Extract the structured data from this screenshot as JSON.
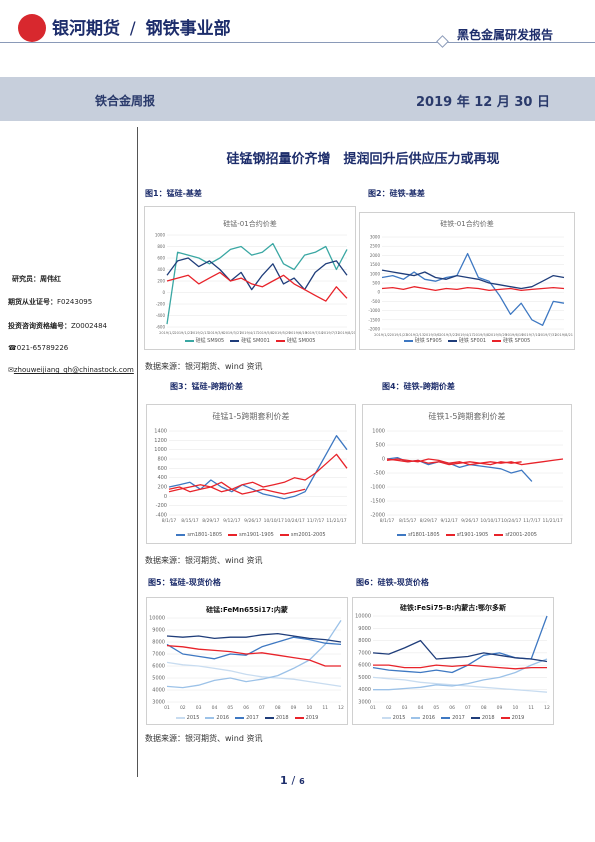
{
  "header": {
    "company": "银河期货",
    "separator": "/",
    "department": "钢铁事业部",
    "report_type": "黑色金属研发报告"
  },
  "band": {
    "title": "铁合金周报",
    "date": "2019 年 12 月 30 日"
  },
  "main_title": "硅锰钢招量价齐增　提润回升后供应压力或再现",
  "sidebar": {
    "researcher_label": "研究员：",
    "researcher": "周伟红",
    "qual_label": "期货从业证号：",
    "qual": "F0243095",
    "advisor_label": "投资咨询资格编号：",
    "advisor": "Z0002484",
    "phone": "021-65789226",
    "email": "zhouweijiang_qh@chinastock.com"
  },
  "figures": {
    "fig1_label": "图1：锰硅-基差",
    "fig2_label": "图2：硅铁-基差",
    "fig3_label": "图3：锰硅-跨期价差",
    "fig4_label": "图4：硅铁-跨期价差",
    "fig5_label": "图5：锰硅-现货价格",
    "fig6_label": "图6：硅铁-现货价格",
    "source1": "数据来源：银河期货、wind 资讯",
    "source2": "数据来源：银河期货、wind 资讯",
    "source3": "数据来源：银河期货、wind 资讯"
  },
  "page": {
    "current": "1",
    "sep": "/",
    "total": "6"
  },
  "colors": {
    "blue_dark": "#1f3d7a",
    "blue_light": "#3e78c2",
    "pale_blue": "#9cc2e8",
    "red": "#e8232a",
    "teal": "#3aa7a3"
  },
  "chart_data": [
    {
      "id": "c1",
      "type": "line",
      "title": "硅锰-01合约价差",
      "y_ticks": [
        "1000",
        "800",
        "600",
        "400",
        "200",
        "0",
        "-200",
        "-400",
        "-600"
      ],
      "ylim": [
        -600,
        1000
      ],
      "x_ticks": [
        "2019/1/2",
        "2019/1/23",
        "2019/2/13",
        "2019/3/6",
        "2019/3/27",
        "2019/4/17",
        "2019/5/8",
        "2019/5/29",
        "2019/6/19",
        "2019/7/10",
        "2019/7/31",
        "2019/8/21"
      ],
      "series": [
        {
          "name": "硅锰 SM905",
          "color": "#3aa7a3",
          "values": [
            -550,
            700,
            650,
            600,
            500,
            600,
            750,
            800,
            650,
            700,
            850,
            500,
            400,
            650,
            700,
            800,
            400,
            750
          ]
        },
        {
          "name": "硅锰 SM001",
          "color": "#1f3d7a",
          "values": [
            300,
            550,
            600,
            450,
            550,
            400,
            200,
            350,
            50,
            300,
            500,
            150,
            250,
            50,
            350,
            500,
            550,
            300
          ]
        },
        {
          "name": "硅锰 SM005",
          "color": "#e8232a",
          "values": [
            200,
            250,
            300,
            150,
            250,
            350,
            200,
            250,
            150,
            100,
            200,
            300,
            150,
            50,
            -50,
            -150,
            100,
            -100
          ]
        }
      ]
    },
    {
      "id": "c2",
      "type": "line",
      "title": "硅铁-01合约价差",
      "y_ticks": [
        "3000",
        "2500",
        "2000",
        "1500",
        "1000",
        "500",
        "0",
        "-500",
        "-1000",
        "-1500",
        "-2000"
      ],
      "ylim": [
        -2000,
        3000
      ],
      "x_ticks": [
        "2019/1/2",
        "2019/1/23",
        "2019/2/13",
        "2019/3/6",
        "2019/3/27",
        "2019/4/17",
        "2019/5/8",
        "2019/5/29",
        "2019/6/19",
        "2019/7/10",
        "2019/7/31",
        "2019/8/21"
      ],
      "series": [
        {
          "name": "硅铁 SF905",
          "color": "#3e78c2",
          "values": [
            800,
            900,
            700,
            1100,
            700,
            600,
            800,
            900,
            2100,
            800,
            600,
            -200,
            -1200,
            -600,
            -1500,
            -1800,
            -500,
            -600
          ]
        },
        {
          "name": "硅铁 SF001",
          "color": "#1f3d7a",
          "values": [
            1200,
            1100,
            1000,
            900,
            1100,
            800,
            700,
            900,
            800,
            700,
            500,
            400,
            300,
            200,
            300,
            600,
            900,
            800
          ]
        },
        {
          "name": "硅铁 SF005",
          "color": "#e8232a",
          "values": [
            200,
            250,
            150,
            300,
            200,
            100,
            200,
            150,
            250,
            200,
            100,
            150,
            200,
            100,
            150,
            200,
            250,
            200
          ]
        }
      ]
    },
    {
      "id": "c3",
      "type": "line",
      "title": "硅锰1-5跨期套利价差",
      "y_ticks": [
        "1400",
        "1200",
        "1000",
        "800",
        "600",
        "400",
        "200",
        "0",
        "-200",
        "-400"
      ],
      "ylim": [
        -400,
        1400
      ],
      "x_ticks": [
        "8/1/17",
        "8/8/17",
        "8/15/17",
        "8/22/17",
        "8/29/17",
        "9/5/17",
        "9/12/17",
        "9/19/17",
        "9/26/17",
        "10/3/17",
        "10/10/17",
        "10/17/17",
        "10/24/17",
        "10/31/17",
        "11/7/17",
        "11/14/17",
        "11/21/17",
        "11/28/17"
      ],
      "series": [
        {
          "name": "sm1801-1805",
          "color": "#3e78c2",
          "values": [
            200,
            250,
            300,
            150,
            350,
            200,
            100,
            250,
            150,
            50,
            0,
            -50,
            0,
            100,
            500,
            900,
            1300,
            1000
          ]
        },
        {
          "name": "sm1901-1905",
          "color": "#e8232a",
          "values": [
            100,
            150,
            200,
            250,
            200,
            300,
            150,
            250,
            300,
            200,
            250,
            300,
            400,
            350,
            500,
            700,
            900,
            600
          ]
        },
        {
          "name": "sm2001-2005",
          "color": "#e8232a",
          "values": [
            150,
            200,
            100,
            150,
            200,
            100,
            150,
            50,
            100,
            150,
            100,
            50,
            100,
            150,
            null,
            null,
            null,
            null
          ]
        }
      ]
    },
    {
      "id": "c4",
      "type": "line",
      "title": "硅铁1-5跨期套利价差",
      "y_ticks": [
        "1000",
        "500",
        "0",
        "-500",
        "-1000",
        "-1500",
        "-2000"
      ],
      "ylim": [
        -2000,
        1000
      ],
      "x_ticks": [
        "8/1/17",
        "8/8/17",
        "8/15/17",
        "8/22/17",
        "8/29/17",
        "9/5/17",
        "9/12/17",
        "9/19/17",
        "9/26/17",
        "10/3/17",
        "10/10/17",
        "10/17/17",
        "10/24/17",
        "10/31/17",
        "11/7/17",
        "11/14/17",
        "11/21/17",
        "11/28/17"
      ],
      "series": [
        {
          "name": "sf1801-1805",
          "color": "#3e78c2",
          "values": [
            0,
            50,
            -100,
            -50,
            -200,
            -100,
            -150,
            -300,
            -200,
            -250,
            -300,
            -350,
            -500,
            -400,
            -800,
            null,
            null,
            null
          ]
        },
        {
          "name": "sf1901-1905",
          "color": "#e8232a",
          "values": [
            -50,
            0,
            -50,
            -100,
            0,
            -50,
            -150,
            -100,
            -200,
            -150,
            -100,
            -150,
            -100,
            -200,
            -150,
            -100,
            -50,
            0
          ]
        },
        {
          "name": "sf2001-2005",
          "color": "#e8232a",
          "values": [
            0,
            -50,
            -100,
            -50,
            -150,
            -100,
            -200,
            -150,
            -100,
            -150,
            -200,
            -100,
            -150,
            -100,
            null,
            null,
            null,
            null
          ]
        }
      ]
    },
    {
      "id": "c5",
      "type": "line",
      "title": "硅锰:FeMn65Si17:内蒙",
      "y_ticks": [
        "10000",
        "9000",
        "8000",
        "7000",
        "6000",
        "5000",
        "4000",
        "3000"
      ],
      "ylim": [
        3000,
        10000
      ],
      "x_ticks": [
        "01",
        "02",
        "03",
        "04",
        "05",
        "06",
        "07",
        "08",
        "09",
        "10",
        "11",
        "12"
      ],
      "series": [
        {
          "name": "2015",
          "color": "#c8dcf0",
          "values": [
            6300,
            6100,
            6000,
            5800,
            5600,
            5300,
            5100,
            5000,
            4900,
            4700,
            4500,
            4300
          ]
        },
        {
          "name": "2016",
          "color": "#9cc2e8",
          "values": [
            4300,
            4200,
            4400,
            4800,
            5000,
            4700,
            4900,
            5200,
            5800,
            6500,
            7800,
            9800
          ]
        },
        {
          "name": "2017",
          "color": "#3e78c2",
          "values": [
            7800,
            7000,
            6800,
            6600,
            7000,
            6900,
            7600,
            8000,
            8400,
            8200,
            7900,
            7800
          ]
        },
        {
          "name": "2018",
          "color": "#1f3d7a",
          "values": [
            8500,
            8400,
            8500,
            8300,
            8400,
            8400,
            8600,
            8700,
            8500,
            8300,
            8200,
            8000
          ]
        },
        {
          "name": "2019",
          "color": "#e8232a",
          "values": [
            7700,
            7600,
            7400,
            7300,
            7200,
            7000,
            7100,
            6900,
            6700,
            6500,
            6000,
            6000
          ]
        }
      ]
    },
    {
      "id": "c6",
      "type": "line",
      "title": "硅铁:FeSi75-B:内蒙古:鄂尔多斯",
      "y_ticks": [
        "10000",
        "9000",
        "8000",
        "7000",
        "6000",
        "5000",
        "4000",
        "3000"
      ],
      "ylim": [
        3000,
        10000
      ],
      "x_ticks": [
        "01",
        "02",
        "03",
        "04",
        "05",
        "06",
        "07",
        "08",
        "09",
        "10",
        "11",
        "12"
      ],
      "series": [
        {
          "name": "2015",
          "color": "#c8dcf0",
          "values": [
            5000,
            4900,
            4800,
            4600,
            4500,
            4400,
            4300,
            4200,
            4100,
            4000,
            3900,
            3800
          ]
        },
        {
          "name": "2016",
          "color": "#9cc2e8",
          "values": [
            4000,
            4000,
            4100,
            4200,
            4400,
            4300,
            4500,
            4800,
            5000,
            5400,
            6000,
            6500
          ]
        },
        {
          "name": "2017",
          "color": "#3e78c2",
          "values": [
            5800,
            5600,
            5500,
            5400,
            5600,
            5400,
            6000,
            6800,
            7000,
            6600,
            6500,
            10000
          ]
        },
        {
          "name": "2018",
          "color": "#1f3d7a",
          "values": [
            7000,
            6900,
            7400,
            8000,
            6500,
            6600,
            6700,
            7000,
            6800,
            6600,
            6500,
            6300
          ]
        },
        {
          "name": "2019",
          "color": "#e8232a",
          "values": [
            6000,
            6000,
            5800,
            5800,
            6000,
            5900,
            6000,
            5900,
            5800,
            5700,
            5800,
            5800
          ]
        }
      ]
    }
  ]
}
